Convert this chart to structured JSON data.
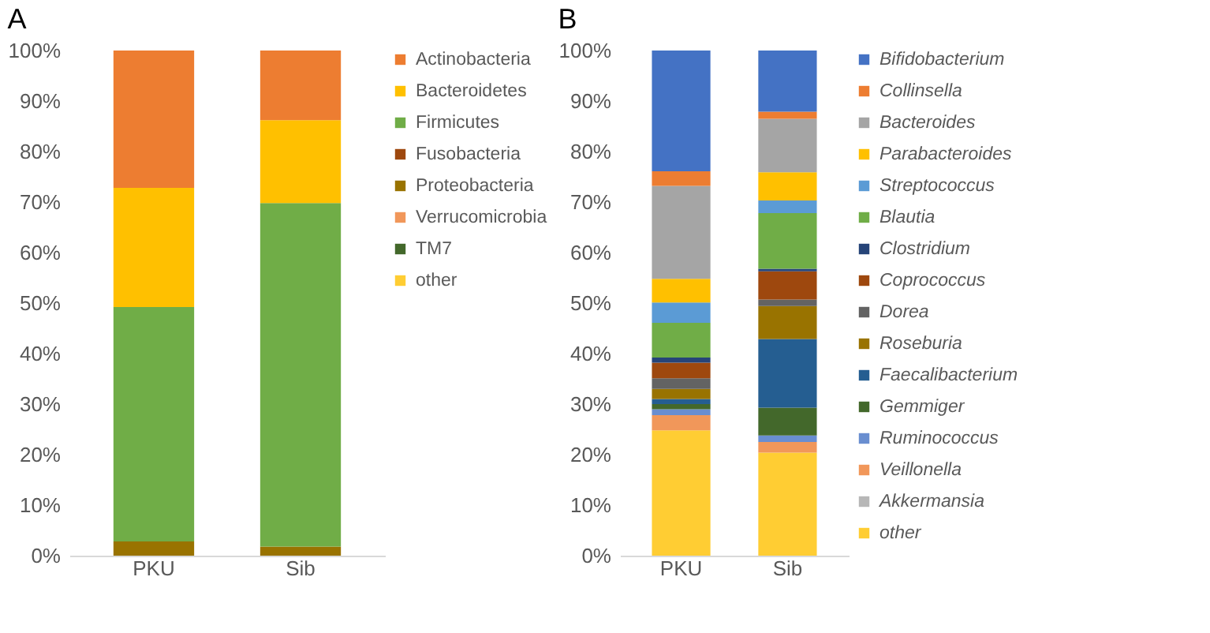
{
  "chart_data": [
    {
      "type": "bar",
      "title": "A",
      "stacked": true,
      "categories": [
        "PKU",
        "Sib"
      ],
      "legend": "right",
      "grid": false,
      "ylim": [
        0,
        100
      ],
      "yticks": [
        {
          "value": 0,
          "label": "0%"
        },
        {
          "value": 10,
          "label": "10%"
        },
        {
          "value": 20,
          "label": "20%"
        },
        {
          "value": 30,
          "label": "30%"
        },
        {
          "value": 40,
          "label": "40%"
        },
        {
          "value": 50,
          "label": "50%"
        },
        {
          "value": 60,
          "label": "60%"
        },
        {
          "value": 70,
          "label": "70%"
        },
        {
          "value": 80,
          "label": "80%"
        },
        {
          "value": 90,
          "label": "90%"
        },
        {
          "value": 100,
          "label": "100%"
        }
      ],
      "series": [
        {
          "name": "other",
          "color": "#ffcd33",
          "values": [
            0,
            0
          ]
        },
        {
          "name": "TM7",
          "color": "#43682b",
          "values": [
            0,
            0
          ]
        },
        {
          "name": "Verrucomicrobia",
          "color": "#f1975a",
          "values": [
            0,
            0
          ]
        },
        {
          "name": "Proteobacteria",
          "color": "#997300",
          "values": [
            2.8,
            1.8
          ]
        },
        {
          "name": "Fusobacteria",
          "color": "#9e480e",
          "values": [
            0,
            0
          ]
        },
        {
          "name": "Firmicutes",
          "color": "#70ad47",
          "values": [
            46.4,
            68.0
          ]
        },
        {
          "name": "Bacteroidetes",
          "color": "#ffc000",
          "values": [
            23.6,
            16.4
          ]
        },
        {
          "name": "Actinobacteria",
          "color": "#ed7d31",
          "values": [
            27.2,
            13.8
          ]
        }
      ]
    },
    {
      "type": "bar",
      "title": "B",
      "stacked": true,
      "categories": [
        "PKU",
        "Sib"
      ],
      "legend": "right",
      "grid": false,
      "ylim": [
        0,
        100
      ],
      "yticks": [
        {
          "value": 0,
          "label": "0%"
        },
        {
          "value": 10,
          "label": "10%"
        },
        {
          "value": 20,
          "label": "20%"
        },
        {
          "value": 30,
          "label": "30%"
        },
        {
          "value": 40,
          "label": "40%"
        },
        {
          "value": 50,
          "label": "50%"
        },
        {
          "value": 60,
          "label": "60%"
        },
        {
          "value": 70,
          "label": "70%"
        },
        {
          "value": 80,
          "label": "80%"
        },
        {
          "value": 90,
          "label": "90%"
        },
        {
          "value": 100,
          "label": "100%"
        }
      ],
      "series": [
        {
          "name": "other",
          "color": "#ffcd33",
          "values": [
            24.8,
            20.4
          ]
        },
        {
          "name": "Akkermansia",
          "color": "#b7b7b7",
          "values": [
            0,
            0
          ]
        },
        {
          "name": "Veillonella",
          "color": "#f1975a",
          "values": [
            3.0,
            2.1
          ]
        },
        {
          "name": "Ruminococcus",
          "color": "#698ed0",
          "values": [
            1.2,
            1.3
          ]
        },
        {
          "name": "Gemmiger",
          "color": "#43682b",
          "values": [
            1.0,
            5.5
          ]
        },
        {
          "name": "Faecalibacterium",
          "color": "#255e91",
          "values": [
            1.0,
            13.6
          ]
        },
        {
          "name": "Roseburia",
          "color": "#997300",
          "values": [
            2.0,
            6.5
          ]
        },
        {
          "name": "Dorea",
          "color": "#636363",
          "values": [
            2.1,
            1.3
          ]
        },
        {
          "name": "Coprococcus",
          "color": "#9e480e",
          "values": [
            3.1,
            5.6
          ]
        },
        {
          "name": "Clostridium",
          "color": "#264478",
          "values": [
            1.0,
            0.5
          ]
        },
        {
          "name": "Blautia",
          "color": "#70ad47",
          "values": [
            6.9,
            11.0
          ]
        },
        {
          "name": "Streptococcus",
          "color": "#5b9bd5",
          "values": [
            4.0,
            2.5
          ]
        },
        {
          "name": "Parabacteroides",
          "color": "#ffc000",
          "values": [
            4.7,
            5.6
          ]
        },
        {
          "name": "Bacteroides",
          "color": "#a5a5a5",
          "values": [
            18.4,
            10.6
          ]
        },
        {
          "name": "Collinsella",
          "color": "#ed7d31",
          "values": [
            2.9,
            1.4
          ]
        },
        {
          "name": "Bifidobacterium",
          "color": "#4472c4",
          "values": [
            23.9,
            12.1
          ]
        }
      ]
    }
  ]
}
